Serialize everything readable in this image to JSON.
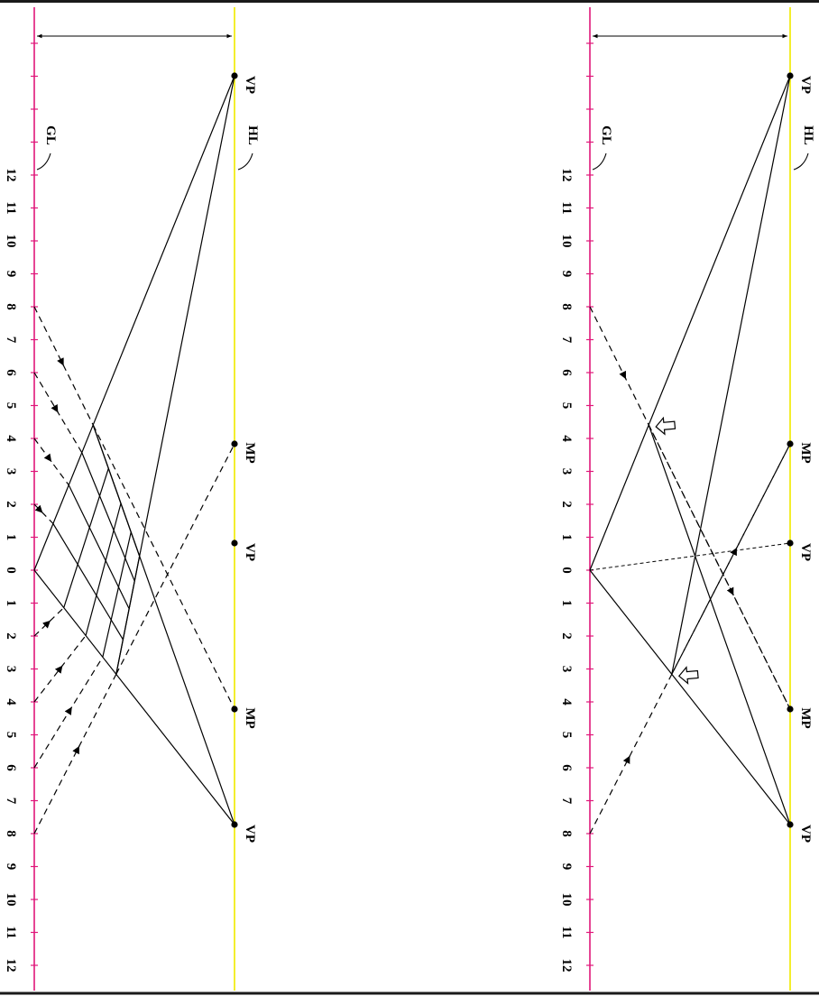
{
  "colors": {
    "ground_line": "#e0177a",
    "horizon_line": "#f2ec16",
    "ink": "#000000",
    "frame": "#1a1a1a",
    "hollow_arrow_fill": "#ffffff"
  },
  "labels": {
    "vp": "VP",
    "mp": "MP",
    "hl": "HL",
    "gl": "GL"
  },
  "scale": {
    "upper_numbers": [
      "12",
      "11",
      "10",
      "9",
      "8",
      "7",
      "6",
      "5",
      "4",
      "3",
      "2",
      "1"
    ],
    "zero": "0",
    "lower_numbers": [
      "1",
      "2",
      "3",
      "4",
      "5",
      "6",
      "7",
      "8",
      "9",
      "10",
      "11",
      "12"
    ]
  },
  "panels": [
    {
      "name": "left-panel",
      "construction": "grid"
    },
    {
      "name": "right-panel",
      "construction": "single-square"
    }
  ]
}
